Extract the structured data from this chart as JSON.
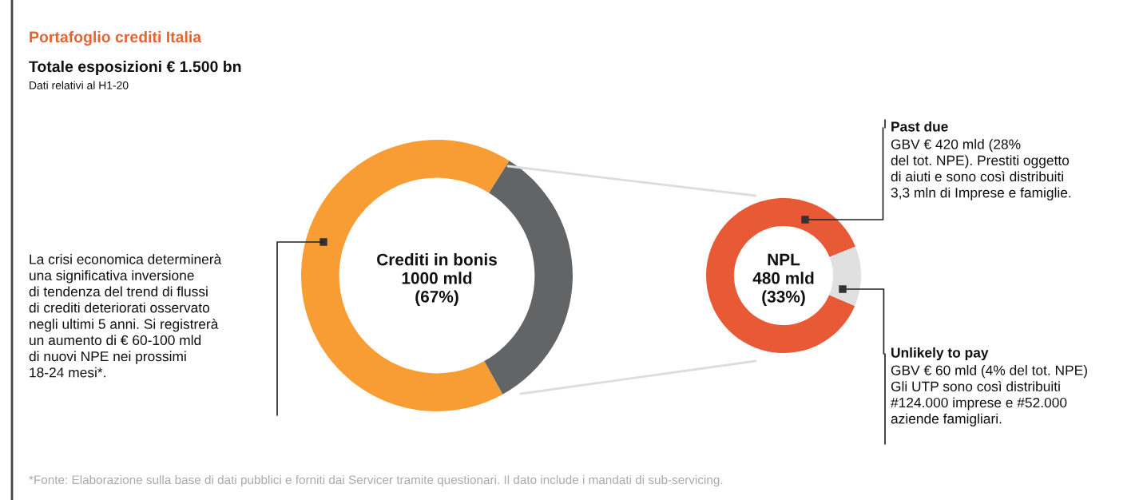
{
  "chart_data": [
    {
      "type": "donut",
      "title": "Portafoglio crediti Italia",
      "subtitle": "Totale esposizioni € 1.500 bn",
      "categories": [
        null,
        null
      ],
      "values": [
        67,
        33
      ],
      "colors": [
        "#f79d34",
        "#636466"
      ],
      "annotations": [
        "Dati relativi al H1-20",
        "Crediti in bonis\n1000 mld\n(67%)",
        "La crisi economica determinerà\nuna significativa inversione\ndi tendenza del trend di flussi\ndi crediti deteriorati osservato\nnegli ultimi 5 anni. Si registrerà\nun aumento di € 60-100 mld\ndi nuovi NPE nei prossimi\n18-24 mesi*.",
        "*Fonte: Elaborazione sulla base di dati pubblici e forniti dai Servicer tramite questionari. Il dato include i mandati di sub-servicing."
      ]
    },
    {
      "type": "donut",
      "categories": [
        "Past due",
        "Unlikely to pay"
      ],
      "values": [
        87.5,
        12.5
      ],
      "colors": [
        "#e85a35",
        "#e0e0e0"
      ],
      "annotations": [
        "NPL\n480 mld\n(33%)",
        "GBV € 420 mld (28%\ndel tot. NPE). Prestiti oggetto\ndi aiuti e sono così distribuiti\n3,3 mln di Imprese e famiglie.",
        "GBV € 60 mld (4% del tot. NPE)\nGli UTP sono così distribuiti\n#124.000 imprese e #52.000\naziende famigliari."
      ]
    }
  ]
}
